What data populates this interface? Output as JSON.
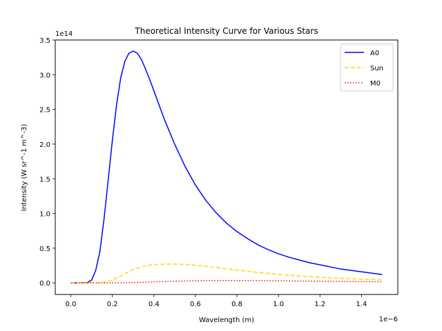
{
  "chart_data": {
    "type": "line",
    "title": "Theoretical Intensity Curve for Various Stars",
    "xlabel": "Wavelength (m)",
    "ylabel": "Intensity (W sr^-1 m^-3)",
    "x_offset_label": "1e−6",
    "y_offset_label": "1e14",
    "x_scale": 1e-06,
    "y_scale": 100000000000000.0,
    "xlim": [
      -0.075,
      1.575
    ],
    "ylim": [
      -0.167,
      3.5
    ],
    "x_ticks": [
      0.0,
      0.2,
      0.4,
      0.6,
      0.8,
      1.0,
      1.2,
      1.4
    ],
    "x_tick_labels": [
      "0.0",
      "0.2",
      "0.4",
      "0.6",
      "0.8",
      "1.0",
      "1.2",
      "1.4"
    ],
    "y_ticks": [
      0.0,
      0.5,
      1.0,
      1.5,
      2.0,
      2.5,
      3.0,
      3.5
    ],
    "y_tick_labels": [
      "0.0",
      "0.5",
      "1.0",
      "1.5",
      "2.0",
      "2.5",
      "3.0",
      "3.5"
    ],
    "grid": false,
    "legend_position": "top-right",
    "x": [
      0.0,
      0.03,
      0.06,
      0.08,
      0.1,
      0.12,
      0.14,
      0.16,
      0.18,
      0.2,
      0.22,
      0.24,
      0.26,
      0.28,
      0.3,
      0.32,
      0.34,
      0.36,
      0.38,
      0.4,
      0.45,
      0.5,
      0.55,
      0.6,
      0.65,
      0.7,
      0.75,
      0.8,
      0.85,
      0.9,
      0.95,
      1.0,
      1.05,
      1.1,
      1.15,
      1.2,
      1.25,
      1.3,
      1.35,
      1.4,
      1.45,
      1.5
    ],
    "series": [
      {
        "name": "A0",
        "color": "#0000ff",
        "dash": "solid",
        "values": [
          0.0,
          0.0,
          0.0,
          0.005,
          0.04,
          0.18,
          0.45,
          0.92,
          1.48,
          2.05,
          2.56,
          2.95,
          3.19,
          3.31,
          3.34,
          3.31,
          3.22,
          3.08,
          2.93,
          2.77,
          2.36,
          2.0,
          1.68,
          1.41,
          1.19,
          1.01,
          0.86,
          0.74,
          0.64,
          0.55,
          0.48,
          0.42,
          0.37,
          0.33,
          0.29,
          0.26,
          0.23,
          0.2,
          0.18,
          0.16,
          0.14,
          0.12
        ]
      },
      {
        "name": "Sun",
        "color": "#ffd700",
        "dash": "dashed",
        "values": [
          0.0,
          0.0,
          0.0,
          0.0,
          0.0,
          0.0,
          0.0,
          0.01,
          0.02,
          0.04,
          0.07,
          0.1,
          0.13,
          0.16,
          0.19,
          0.21,
          0.23,
          0.245,
          0.255,
          0.262,
          0.27,
          0.27,
          0.265,
          0.254,
          0.24,
          0.222,
          0.204,
          0.186,
          0.168,
          0.152,
          0.137,
          0.123,
          0.111,
          0.1,
          0.09,
          0.081,
          0.073,
          0.066,
          0.06,
          0.054,
          0.049,
          0.044
        ]
      },
      {
        "name": "M0",
        "color": "#ff0000",
        "dash": "dotted",
        "values": [
          0.0,
          0.0,
          0.0,
          0.0,
          0.0,
          0.0,
          0.0,
          0.0,
          0.0,
          0.0,
          0.0,
          0.001,
          0.002,
          0.003,
          0.004,
          0.006,
          0.008,
          0.01,
          0.012,
          0.014,
          0.019,
          0.023,
          0.027,
          0.03,
          0.032,
          0.033,
          0.034,
          0.034,
          0.033,
          0.032,
          0.031,
          0.029,
          0.028,
          0.026,
          0.025,
          0.023,
          0.022,
          0.02,
          0.019,
          0.018,
          0.017,
          0.016
        ]
      }
    ]
  }
}
